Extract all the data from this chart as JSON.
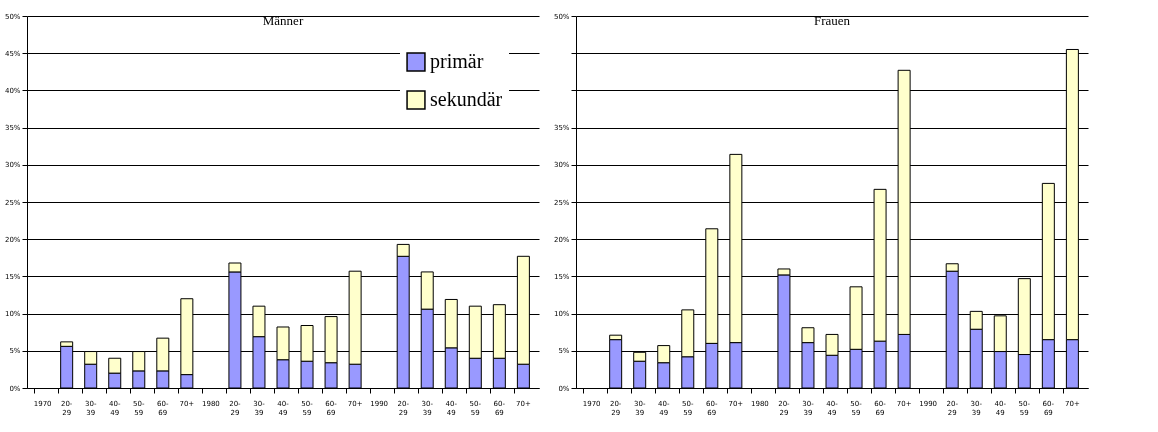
{
  "chart_data": [
    {
      "type": "bar",
      "title": "Männer",
      "stacked": true,
      "grid": true,
      "legend": "top right",
      "categories": [
        "1970",
        "20-\n29",
        "30-\n39",
        "40-\n49",
        "50-\n59",
        "60-\n69",
        "70+",
        "1980",
        "20-\n29",
        "30-\n39",
        "40-\n49",
        "50-\n59",
        "60-\n69",
        "70+",
        "1990",
        "20-\n29",
        "30-\n39",
        "40-\n49",
        "50-\n59",
        "60-\n69",
        "70+"
      ],
      "series": [
        {
          "name": "primär",
          "color": "#9999ff",
          "values": [
            null,
            5.6,
            3.2,
            2,
            2.3,
            2.3,
            1.8,
            null,
            15.6,
            6.9,
            3.8,
            3.6,
            3.4,
            3.2,
            null,
            17.7,
            10.6,
            5.4,
            4,
            4,
            3.2
          ]
        },
        {
          "name": "sekundär",
          "color": "#ffffcc",
          "values": [
            null,
            0.6,
            1.7,
            2,
            2.6,
            4.4,
            10.2,
            null,
            1.2,
            4.1,
            4.4,
            4.8,
            6.2,
            12.5,
            null,
            1.6,
            5,
            6.5,
            7,
            7.2,
            14.5
          ]
        }
      ],
      "ylim": [
        0,
        50
      ],
      "yticks": [
        {
          "value": 0,
          "label": "0%"
        },
        {
          "value": 5,
          "label": "5%"
        },
        {
          "value": 10,
          "label": "10%"
        },
        {
          "value": 15,
          "label": "15%"
        },
        {
          "value": 20,
          "label": "20%"
        },
        {
          "value": 25,
          "label": "25%"
        },
        {
          "value": 30,
          "label": "30%"
        },
        {
          "value": 35,
          "label": "35%"
        },
        {
          "value": 40,
          "label": "40%"
        },
        {
          "value": 45,
          "label": "45%"
        },
        {
          "value": 50,
          "label": "50%"
        }
      ]
    },
    {
      "type": "bar",
      "title": "Frauen",
      "stacked": true,
      "grid": true,
      "categories": [
        "1970",
        "20-\n29",
        "30-\n39",
        "40-\n49",
        "50-\n59",
        "60-\n69",
        "70+",
        "1980",
        "20-\n29",
        "30-\n39",
        "40-\n49",
        "50-\n59",
        "60-\n69",
        "70+",
        "1990",
        "20-\n29",
        "30-\n39",
        "40-\n49",
        "50-\n59",
        "60-\n69",
        "70+"
      ],
      "series": [
        {
          "color": "#9999ff",
          "values": [
            null,
            6.5,
            3.6,
            3.4,
            4.2,
            6,
            6.1,
            null,
            15.2,
            6.1,
            4.4,
            5.2,
            6.3,
            7.2,
            null,
            15.7,
            7.9,
            4.9,
            4.5,
            6.5,
            6.5
          ]
        },
        {
          "color": "#ffffcc",
          "values": [
            null,
            0.6,
            1.2,
            2.3,
            6.3,
            15.4,
            25.3,
            null,
            0.8,
            2,
            2.8,
            8.4,
            20.4,
            35.5,
            null,
            1,
            2.4,
            4.8,
            10.2,
            21,
            39
          ]
        }
      ],
      "ylim": [
        0,
        50
      ],
      "yticks": [
        {
          "value": 0,
          "label": "0%"
        },
        {
          "value": 5,
          "label": "5%"
        },
        {
          "value": 10,
          "label": "10%"
        },
        {
          "value": 15,
          "label": "15%"
        },
        {
          "value": 20,
          "label": "20%"
        },
        {
          "value": 25,
          "label": "25%"
        },
        {
          "value": 30,
          "label": "30%"
        },
        {
          "value": 35,
          "label": "35%"
        },
        {
          "value": 40,
          "label": null
        },
        {
          "value": 45,
          "label": null
        },
        {
          "value": 50,
          "label": "50%"
        }
      ]
    }
  ]
}
